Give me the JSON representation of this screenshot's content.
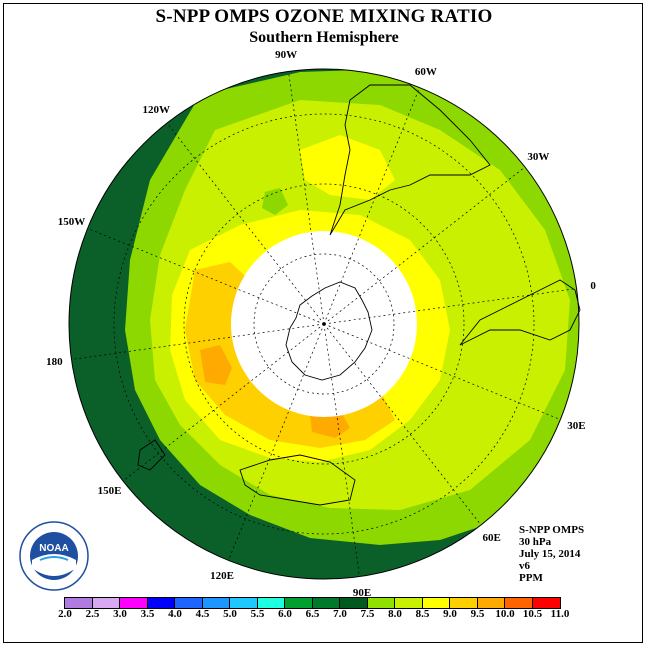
{
  "title": "S-NPP OMPS OZONE MIXING RATIO",
  "subtitle": "Southern Hemisphere",
  "longitude_labels": [
    "90W",
    "60W",
    "30W",
    "0",
    "30E",
    "60E",
    "90E",
    "120E",
    "150E",
    "180",
    "150W",
    "120W"
  ],
  "info": {
    "instrument": "S-NPP OMPS",
    "level": "30 hPa",
    "date": "July 15, 2014",
    "version": "v6",
    "units": "PPM"
  },
  "logo_text": "NOAA",
  "colorbar": {
    "ticks": [
      "2.0",
      "2.5",
      "3.0",
      "3.5",
      "4.0",
      "4.5",
      "5.0",
      "5.5",
      "6.0",
      "6.5",
      "7.0",
      "7.5",
      "8.0",
      "8.5",
      "9.0",
      "9.5",
      "10.0",
      "10.5",
      "11.0"
    ],
    "colors": [
      "#b07ae0",
      "#d8a8f0",
      "#ff00ff",
      "#0000ff",
      "#1e64ff",
      "#1e96ff",
      "#1ec8ff",
      "#1effe0",
      "#00a030",
      "#007a2a",
      "#005a20",
      "#90e000",
      "#c8f000",
      "#ffff00",
      "#ffd000",
      "#ffaa00",
      "#ff6400",
      "#ff0000",
      "#8b4513"
    ]
  },
  "field_colors": {
    "dark_green": "#0a6028",
    "green": "#8cd800",
    "yellow_green": "#c8f000",
    "yellow": "#ffff00",
    "light_orange": "#ffd000",
    "orange": "#ffaa00",
    "missing": "#ffffff"
  }
}
